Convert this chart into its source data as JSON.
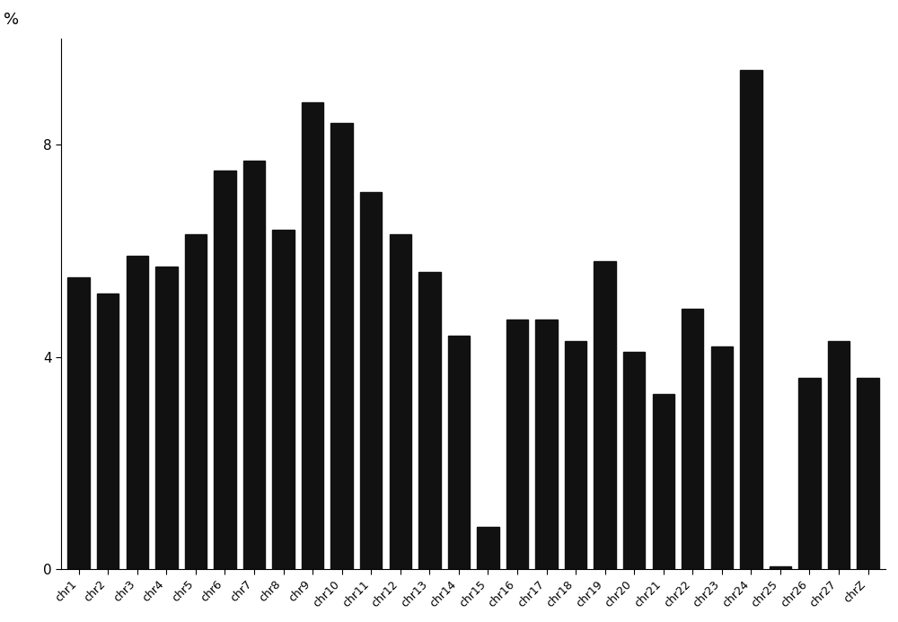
{
  "categories": [
    "chr1",
    "chr2",
    "chr3",
    "chr4",
    "chr5",
    "chr6",
    "chr7",
    "chr8",
    "chr9",
    "chr10",
    "chr11",
    "chr12",
    "chr13",
    "chr14",
    "chr15",
    "chr16",
    "chr17",
    "chr18",
    "chr19",
    "chr20",
    "chr21",
    "chr22",
    "chr23",
    "chr24",
    "chr25",
    "chr26",
    "chr27",
    "chrZ"
  ],
  "values": [
    5.5,
    5.2,
    5.9,
    5.7,
    6.3,
    7.5,
    7.7,
    6.4,
    8.8,
    8.4,
    7.1,
    6.3,
    5.6,
    4.4,
    0.8,
    4.7,
    4.7,
    4.3,
    5.8,
    4.1,
    3.3,
    4.9,
    4.2,
    9.4,
    0.05,
    3.6,
    4.3,
    3.6
  ],
  "bar_color": "#111111",
  "percent_label": "%",
  "ylim": [
    0,
    10
  ],
  "yticks": [
    0,
    4,
    8
  ],
  "background_color": "#ffffff",
  "bar_width": 0.75,
  "xlabel_fontsize": 9,
  "ylabel_fontsize": 13,
  "ytick_fontsize": 11
}
